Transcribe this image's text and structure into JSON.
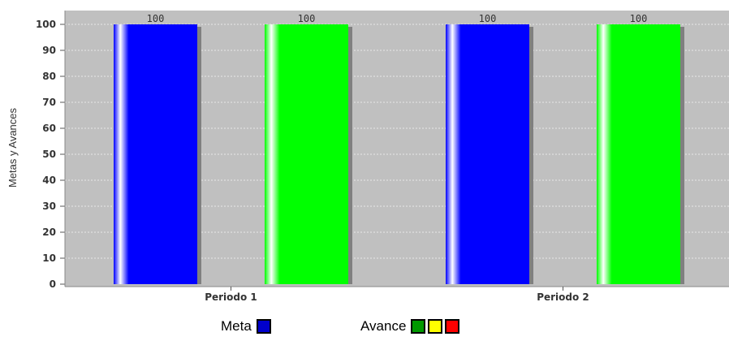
{
  "chart_data": {
    "type": "bar",
    "categories": [
      "Periodo 1",
      "Periodo 2"
    ],
    "series": [
      {
        "values": [
          100,
          100
        ],
        "color": "#0000ff"
      },
      {
        "values": [
          100,
          100
        ],
        "color": "#00ff00"
      }
    ],
    "data_labels": [
      "100",
      "100",
      "100",
      "100"
    ],
    "ylabel": "Metas y Avances",
    "ylim": [
      0,
      100
    ],
    "yticks": [
      0,
      10,
      20,
      30,
      40,
      50,
      60,
      70,
      80,
      90,
      100
    ],
    "grid": true,
    "plot_background": "#c0c0c0"
  },
  "legend": {
    "meta": {
      "label": "Meta",
      "color": "#0000cc"
    },
    "avance": {
      "label": "Avance",
      "colors": [
        "#009900",
        "#ffff00",
        "#ff0000"
      ]
    }
  }
}
